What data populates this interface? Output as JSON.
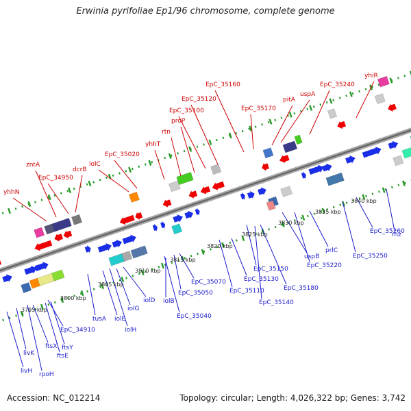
{
  "title": "Erwinia pyrifoliae Ep1/96 chromosome, complete genome",
  "footer": {
    "accession": "Accession: NC_012214",
    "topology": "Topology: circular; Length: 4,026,322 bp; Genes: 3,742"
  },
  "colors": {
    "top_label": "#cc0000",
    "bottom_label": "#1a1acc",
    "reverse_gene": "#ee0000",
    "forward_gene": "#1a2ee8",
    "dotted_track": "#2a9a2a",
    "backbone": "#888888"
  },
  "ruler": [
    {
      "label": "3795 kbp"
    },
    {
      "label": "3800 kbp"
    },
    {
      "label": "3805 kbp"
    },
    {
      "label": "3810 kbp"
    },
    {
      "label": "3815 kbp"
    },
    {
      "label": "3820 kbp"
    },
    {
      "label": "3825 kbp"
    },
    {
      "label": "3830 kbp"
    },
    {
      "label": "3835 kbp"
    },
    {
      "label": "3840 kbp"
    }
  ],
  "top_labels": [
    {
      "name": "yhhN"
    },
    {
      "name": "zntA"
    },
    {
      "name": "EpC_34950"
    },
    {
      "name": "dcrB"
    },
    {
      "name": "iolC"
    },
    {
      "name": "EpC_35020"
    },
    {
      "name": "yhhT"
    },
    {
      "name": "rtn"
    },
    {
      "name": "proP"
    },
    {
      "name": "EpC_35100"
    },
    {
      "name": "EpC_35120"
    },
    {
      "name": "EpC_35160"
    },
    {
      "name": "EpC_35170"
    },
    {
      "name": "pitA"
    },
    {
      "name": "uspA"
    },
    {
      "name": "EpC_35240"
    },
    {
      "name": "yhiR"
    }
  ],
  "bottom_labels": [
    {
      "name": "livH"
    },
    {
      "name": "livK"
    },
    {
      "name": "rpoH"
    },
    {
      "name": "ftsX"
    },
    {
      "name": "ftsE"
    },
    {
      "name": "ftsY"
    },
    {
      "name": "EpC_34910"
    },
    {
      "name": "tusA"
    },
    {
      "name": "iolE"
    },
    {
      "name": "iolH"
    },
    {
      "name": "iolG"
    },
    {
      "name": "iolD"
    },
    {
      "name": "iolB"
    },
    {
      "name": "EpC_35040"
    },
    {
      "name": "EpC_35050"
    },
    {
      "name": "EpC_35070"
    },
    {
      "name": "EpC_35110"
    },
    {
      "name": "EpC_35130"
    },
    {
      "name": "EpC_35150"
    },
    {
      "name": "EpC_35140"
    },
    {
      "name": "EpC_35180"
    },
    {
      "name": "uspB"
    },
    {
      "name": "EpC_35220"
    },
    {
      "name": "prlC"
    },
    {
      "name": "EpC_35250"
    },
    {
      "name": "EpC_35260"
    },
    {
      "name": "rnz"
    }
  ]
}
